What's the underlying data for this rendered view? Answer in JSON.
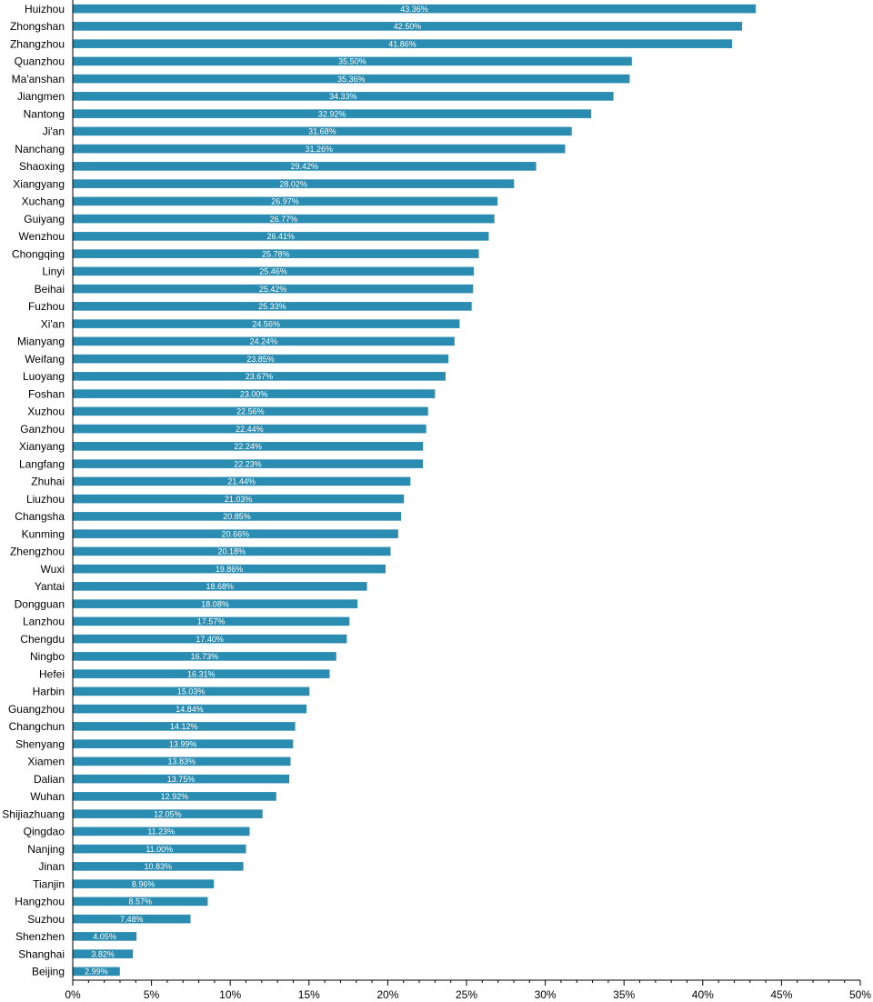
{
  "chart_data": {
    "type": "bar",
    "orientation": "horizontal",
    "categories": [
      "Huizhou",
      "Zhongshan",
      "Zhangzhou",
      "Quanzhou",
      "Ma'anshan",
      "Jiangmen",
      "Nantong",
      "Ji'an",
      "Nanchang",
      "Shaoxing",
      "Xiangyang",
      "Xuchang",
      "Guiyang",
      "Wenzhou",
      "Chongqing",
      "Linyi",
      "Beihai",
      "Fuzhou",
      "Xi'an",
      "Mianyang",
      "Weifang",
      "Luoyang",
      "Foshan",
      "Xuzhou",
      "Ganzhou",
      "Xianyang",
      "Langfang",
      "Zhuhai",
      "Liuzhou",
      "Changsha",
      "Kunming",
      "Zhengzhou",
      "Wuxi",
      "Yantai",
      "Dongguan",
      "Lanzhou",
      "Chengdu",
      "Ningbo",
      "Hefei",
      "Harbin",
      "Guangzhou",
      "Changchun",
      "Shenyang",
      "Xiamen",
      "Dalian",
      "Wuhan",
      "Shijiazhuang",
      "Qingdao",
      "Nanjing",
      "Jinan",
      "Tianjin",
      "Hangzhou",
      "Suzhou",
      "Shenzhen",
      "Shanghai",
      "Beijing"
    ],
    "values": [
      43.36,
      42.5,
      41.86,
      35.5,
      35.36,
      34.33,
      32.92,
      31.68,
      31.26,
      29.42,
      28.02,
      26.97,
      26.77,
      26.41,
      25.78,
      25.46,
      25.42,
      25.33,
      24.56,
      24.24,
      23.85,
      23.67,
      23.0,
      22.56,
      22.44,
      22.24,
      22.23,
      21.44,
      21.03,
      20.85,
      20.66,
      20.18,
      19.86,
      18.68,
      18.08,
      17.57,
      17.4,
      16.73,
      16.31,
      15.03,
      14.84,
      14.12,
      13.99,
      13.83,
      13.75,
      12.92,
      12.05,
      11.23,
      11.0,
      10.83,
      8.96,
      8.57,
      7.48,
      4.05,
      3.82,
      2.99
    ],
    "data_labels": [
      "43.36%",
      "42.50%",
      "41.86%",
      "35.50%",
      "35.36%",
      "34.33%",
      "32.92%",
      "31.68%",
      "31.26%",
      "29.42%",
      "28.02%",
      "26.97%",
      "26.77%",
      "26.41%",
      "25.78%",
      "25.46%",
      "25.42%",
      "25.33%",
      "24.56%",
      "24.24%",
      "23.85%",
      "23.67%",
      "23.00%",
      "22.56%",
      "22.44%",
      "22.24%",
      "22.23%",
      "21.44%",
      "21.03%",
      "20.85%",
      "20.66%",
      "20.18%",
      "19.86%",
      "18.68%",
      "18.08%",
      "17.57%",
      "17.40%",
      "16.73%",
      "16.31%",
      "15.03%",
      "14.84%",
      "14.12%",
      "13.99%",
      "13.83%",
      "13.75%",
      "12.92%",
      "12.05%",
      "11.23%",
      "11.00%",
      "10.83%",
      "8.96%",
      "8.57%",
      "7.48%",
      "4.05%",
      "3.82%",
      "2.99%"
    ],
    "x_ticks": [
      0,
      5,
      10,
      15,
      20,
      25,
      30,
      35,
      40,
      45,
      50
    ],
    "x_tick_labels": [
      "0%",
      "5%",
      "10%",
      "15%",
      "20%",
      "25%",
      "30%",
      "35%",
      "40%",
      "45%",
      "50%"
    ],
    "xlim": [
      0,
      50
    ],
    "title": "",
    "xlabel": "",
    "ylabel": "",
    "grid": false,
    "legend": "none",
    "bar_color": "#2a8cb0",
    "axis_color": "#000000",
    "label_color": "#ffffff"
  }
}
